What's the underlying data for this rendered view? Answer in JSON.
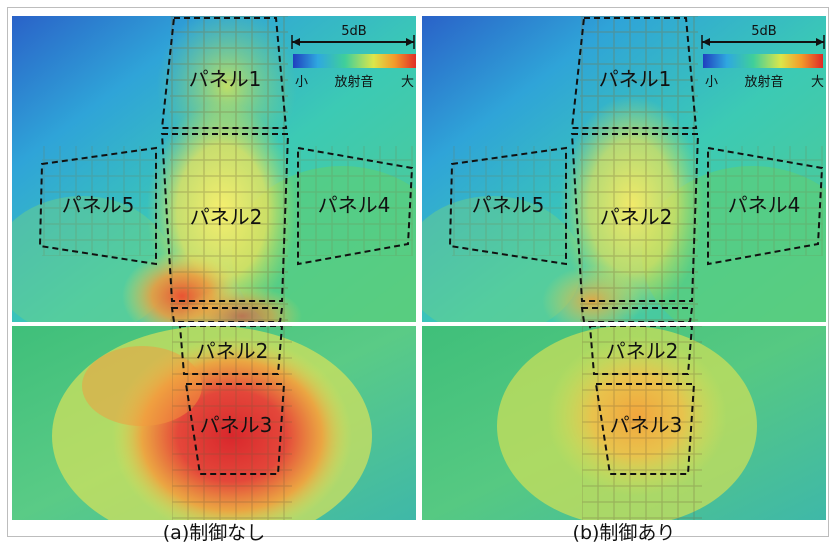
{
  "legend": {
    "scale_label": "5dB",
    "min_label": "小",
    "middle_label": "放射音",
    "max_label": "大",
    "colors": [
      "#1f3fbf",
      "#2fa8e0",
      "#3fcf9a",
      "#dde64a",
      "#f39a2a",
      "#e02828"
    ]
  },
  "views": [
    {
      "caption": "(a)制御なし",
      "top_labels": [
        "パネル1",
        "パネル2",
        "パネル4",
        "パネル5"
      ],
      "bottom_labels": [
        "パネル2",
        "パネル3"
      ]
    },
    {
      "caption": "(b)制御あり",
      "top_labels": [
        "パネル1",
        "パネル2",
        "パネル4",
        "パネル5"
      ],
      "bottom_labels": [
        "パネル2",
        "パネル3"
      ]
    }
  ]
}
